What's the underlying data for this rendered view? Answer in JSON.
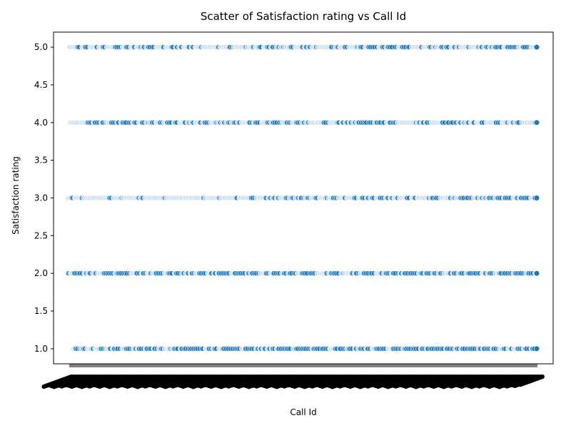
{
  "chart_data": {
    "type": "scatter",
    "title": "Scatter of Satisfaction rating vs Call Id",
    "xlabel": "Call Id",
    "ylabel": "Satisfaction rating",
    "ylim": [
      0.8,
      5.2
    ],
    "yticks": [
      "1.0",
      "1.5",
      "2.0",
      "2.5",
      "3.0",
      "3.5",
      "4.0",
      "4.5",
      "5.0"
    ],
    "x_tick_labels": "unreadable (thousands of overlapping rotated categorical Call Id labels)",
    "point_color": "#1f77b4",
    "point_count_estimate": 5000,
    "rating_levels": [
      1,
      2,
      3,
      4,
      5
    ],
    "series": [
      {
        "y": 5,
        "density_profile": "sparse and light at low Call Id, denser toward higher Call Id"
      },
      {
        "y": 4,
        "density_profile": "moderately dense throughout, slightly denser at higher Call Id"
      },
      {
        "y": 3,
        "density_profile": "light and uniform across range, darker at far right"
      },
      {
        "y": 2,
        "density_profile": "dense throughout"
      },
      {
        "y": 1,
        "density_profile": "dense throughout"
      }
    ],
    "grid": false,
    "legend": "none"
  }
}
